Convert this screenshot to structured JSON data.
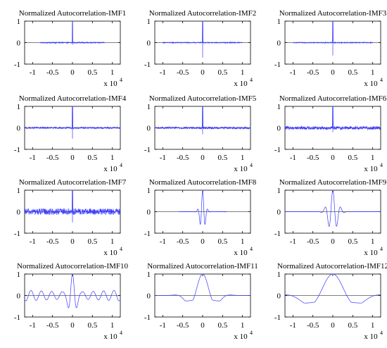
{
  "figure": {
    "background": "#ffffff",
    "axis_color": "#000000",
    "signal_color": "#3a3aff"
  },
  "chart_data": [
    {
      "type": "line",
      "title": "Normalized Autocorrelation-IMF1",
      "xlim": [
        -12000,
        12000
      ],
      "ylim": [
        -1,
        1
      ],
      "xticks": [
        -1,
        -0.5,
        0,
        0.5,
        1
      ],
      "yticks": [
        -1,
        0,
        1
      ],
      "x_multiplier": "x 10",
      "x_exponent": "4",
      "lag_span": 8000,
      "spike": 1.0,
      "noise": 0.02,
      "envelope": "none",
      "osc": 0,
      "period": 0,
      "decay": 0,
      "extra_flat": false
    },
    {
      "type": "line",
      "title": "Normalized Autocorrelation-IMF2",
      "xlim": [
        -12000,
        12000
      ],
      "ylim": [
        -1,
        1
      ],
      "xticks": [
        -1,
        -0.5,
        0,
        0.5,
        1
      ],
      "yticks": [
        -1,
        0,
        1
      ],
      "x_multiplier": "x 10",
      "x_exponent": "4",
      "lag_span": 10000,
      "spike": 1.0,
      "noise": 0.02,
      "envelope": "none",
      "osc": 0,
      "period": 0,
      "decay": 0,
      "min_dip": -0.7,
      "extra_flat": true
    },
    {
      "type": "line",
      "title": "Normalized Autocorrelation-IMF3",
      "xlim": [
        -12000,
        12000
      ],
      "ylim": [
        -1,
        1
      ],
      "xticks": [
        -1,
        -0.5,
        0,
        0.5,
        1
      ],
      "yticks": [
        -1,
        0,
        1
      ],
      "x_multiplier": "x 10",
      "x_exponent": "4",
      "lag_span": 10000,
      "spike": 1.0,
      "noise": 0.02,
      "envelope": "none",
      "osc": 0,
      "period": 0,
      "decay": 0,
      "min_dip": -0.6,
      "extra_flat": true
    },
    {
      "type": "line",
      "title": "Normalized Autocorrelation-IMF4",
      "xlim": [
        -12000,
        12000
      ],
      "ylim": [
        -1,
        1
      ],
      "xticks": [
        -1,
        -0.5,
        0,
        0.5,
        1
      ],
      "yticks": [
        -1,
        0,
        1
      ],
      "x_multiplier": "x 10",
      "x_exponent": "4",
      "lag_span": 12000,
      "spike": 1.0,
      "noise": 0.04,
      "envelope": "none",
      "osc": 0,
      "period": 0,
      "decay": 0,
      "min_dip": -0.5,
      "extra_flat": false
    },
    {
      "type": "line",
      "title": "Normalized Autocorrelation-IMF5",
      "xlim": [
        -12000,
        12000
      ],
      "ylim": [
        -1,
        1
      ],
      "xticks": [
        -1,
        -0.5,
        0,
        0.5,
        1
      ],
      "yticks": [
        -1,
        0,
        1
      ],
      "x_multiplier": "x 10",
      "x_exponent": "4",
      "lag_span": 12000,
      "spike": 1.0,
      "noise": 0.05,
      "envelope": "none",
      "osc": 0,
      "period": 0,
      "decay": 0,
      "min_dip": -0.3,
      "extra_flat": false
    },
    {
      "type": "line",
      "title": "Normalized Autocorrelation-IMF6",
      "xlim": [
        -12000,
        12000
      ],
      "ylim": [
        -1,
        1
      ],
      "xticks": [
        -1,
        -0.5,
        0,
        0.5,
        1
      ],
      "yticks": [
        -1,
        0,
        1
      ],
      "x_multiplier": "x 10",
      "x_exponent": "4",
      "lag_span": 12000,
      "spike": 1.0,
      "noise": 0.08,
      "envelope": "none",
      "osc": 0,
      "period": 0,
      "decay": 0,
      "min_dip": -0.2,
      "extra_flat": false
    },
    {
      "type": "line",
      "title": "Normalized Autocorrelation-IMF7",
      "xlim": [
        -12000,
        12000
      ],
      "ylim": [
        -1,
        1
      ],
      "xticks": [
        -1,
        -0.5,
        0,
        0.5,
        1
      ],
      "yticks": [
        -1,
        0,
        1
      ],
      "x_multiplier": "x 10",
      "x_exponent": "4",
      "lag_span": 12000,
      "spike": 1.0,
      "noise": 0.15,
      "envelope": "none",
      "osc": 0,
      "period": 0,
      "decay": 0,
      "min_dip": -0.5,
      "extra_flat": false
    },
    {
      "type": "line",
      "title": "Normalized Autocorrelation-IMF8",
      "xlim": [
        -12000,
        12000
      ],
      "ylim": [
        -1,
        1
      ],
      "xticks": [
        -1,
        -0.5,
        0,
        0.5,
        1
      ],
      "yticks": [
        -1,
        0,
        1
      ],
      "x_multiplier": "x 10",
      "x_exponent": "4",
      "lag_span": 6000,
      "spike": 1.0,
      "noise": 0.005,
      "envelope": "wavelet",
      "osc": 1.0,
      "period": 1300,
      "decay": 600,
      "min_dip": -0.35,
      "extra_flat": false
    },
    {
      "type": "line",
      "title": "Normalized Autocorrelation-IMF9",
      "xlim": [
        -12000,
        12000
      ],
      "ylim": [
        -1,
        1
      ],
      "xticks": [
        -1,
        -0.5,
        0,
        0.5,
        1
      ],
      "yticks": [
        -1,
        0,
        1
      ],
      "x_multiplier": "x 10",
      "x_exponent": "4",
      "lag_span": 12000,
      "spike": 1.0,
      "noise": 0.005,
      "envelope": "wavelet",
      "osc": 1.0,
      "period": 2000,
      "decay": 1100,
      "min_dip": -0.45,
      "extra_flat": false
    },
    {
      "type": "line",
      "title": "Normalized Autocorrelation-IMF10",
      "xlim": [
        -12000,
        12000
      ],
      "ylim": [
        -1,
        1
      ],
      "xticks": [
        -1,
        -0.5,
        0,
        0.5,
        1
      ],
      "yticks": [
        -1,
        0,
        1
      ],
      "x_multiplier": "x 10",
      "x_exponent": "4",
      "lag_span": 12000,
      "spike": 1.0,
      "noise": 0.005,
      "envelope": "imf10",
      "osc": 0.25,
      "period": 2600,
      "decay": 900,
      "min_dip": -0.5,
      "extra_flat": false
    },
    {
      "type": "line",
      "title": "Normalized Autocorrelation-IMF11",
      "xlim": [
        -12000,
        12000
      ],
      "ylim": [
        -1,
        1
      ],
      "xticks": [
        -1,
        -0.5,
        0,
        0.5,
        1
      ],
      "yticks": [
        -1,
        0,
        1
      ],
      "x_multiplier": "x 10",
      "x_exponent": "4",
      "lag_span": 12000,
      "spike": 1.0,
      "noise": 0.005,
      "envelope": "gauss_wave",
      "osc": 1.0,
      "period": 8000,
      "decay": 2700,
      "min_dip": -0.25,
      "extra_flat": false
    },
    {
      "type": "line",
      "title": "Normalized Autocorrelation-IMF12",
      "xlim": [
        -12000,
        12000
      ],
      "ylim": [
        -1,
        1
      ],
      "xticks": [
        -1,
        -0.5,
        0,
        0.5,
        1
      ],
      "yticks": [
        -1,
        0,
        1
      ],
      "x_multiplier": "x 10",
      "x_exponent": "4",
      "lag_span": 12000,
      "spike": 1.0,
      "noise": 0.005,
      "envelope": "gauss_wave",
      "osc": 1.0,
      "period": 14000,
      "decay": 5000,
      "min_dip": -0.35,
      "extra_flat": false
    }
  ]
}
